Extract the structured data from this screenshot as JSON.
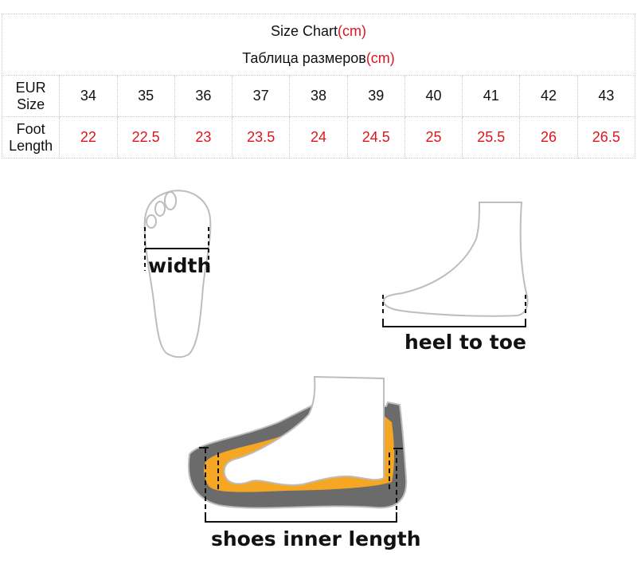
{
  "chart_data": {
    "type": "table",
    "title": "Size Chart",
    "title_unit": "(cm)",
    "subtitle": "Таблица размеров",
    "subtitle_unit": "(cm)",
    "rows": [
      {
        "label": "EUR Size",
        "values": [
          "34",
          "35",
          "36",
          "37",
          "38",
          "39",
          "40",
          "41",
          "42",
          "43"
        ],
        "color": "#111111"
      },
      {
        "label": "Foot Length",
        "values": [
          "22",
          "22.5",
          "23",
          "23.5",
          "24",
          "24.5",
          "25",
          "25.5",
          "26",
          "26.5"
        ],
        "color": "#e0141e"
      }
    ]
  },
  "illustrations": {
    "width_label": "width",
    "heel_label": "heel to toe",
    "shoe_label": "shoes inner length",
    "colors": {
      "sole": "#6b6b6b",
      "insole": "#f5a623",
      "outline": "#bdbdbd"
    }
  }
}
